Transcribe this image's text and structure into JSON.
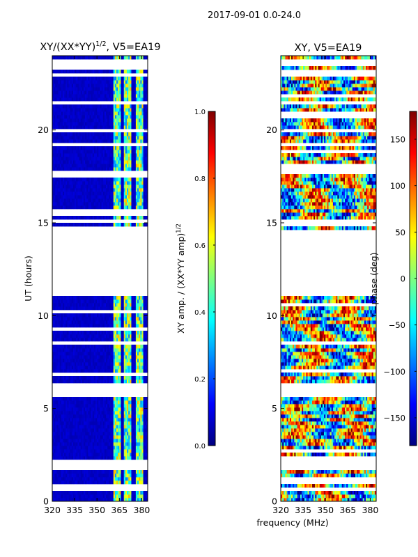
{
  "suptitle": "2017-09-01 0.0-24.0",
  "chart_data": [
    {
      "type": "heatmap",
      "title": "XY/(XX*YY)^1/2, V5=EA19",
      "title_main": "XY/(XX*YY)",
      "title_exp": "1/2",
      "title_rest": ", V5=EA19",
      "xlabel": "frequency (MHz)",
      "ylabel": "UT (hours)",
      "xlim": [
        320,
        384
      ],
      "ylim": [
        0,
        24
      ],
      "xticks": [
        320,
        335,
        350,
        365,
        380
      ],
      "yticks": [
        0,
        5,
        10,
        15,
        20
      ],
      "colorbar": {
        "label": "XY amp. / (XX*YY amp)^1/2",
        "label_main": "XY amp. / (XX*YY amp)",
        "label_exp": "1/2",
        "range": [
          0.0,
          1.0
        ],
        "ticks": [
          "0.0",
          "0.2",
          "0.4",
          "0.6",
          "0.8",
          "1.0"
        ],
        "tick_values": [
          0.0,
          0.2,
          0.4,
          0.6,
          0.8,
          1.0
        ],
        "colormap": "jet"
      },
      "flagged_blank_bands_hours": [
        [
          23.3,
          23.55
        ],
        [
          19.85,
          20.1
        ],
        [
          17.55,
          17.85
        ],
        [
          11.0,
          14.6
        ],
        [
          5.7,
          6.3
        ],
        [
          1.7,
          2.2
        ],
        [
          0.6,
          0.9
        ]
      ],
      "rfi_channel_bands_MHz": [
        [
          361,
          366
        ],
        [
          368,
          373
        ],
        [
          376,
          381
        ]
      ]
    },
    {
      "type": "heatmap",
      "title": "XY, V5=EA19",
      "xlabel": "frequency (MHz)",
      "ylabel": "",
      "xlim": [
        320,
        384
      ],
      "ylim": [
        0,
        24
      ],
      "xticks": [
        320,
        335,
        350,
        365,
        380
      ],
      "yticks": [
        0,
        5,
        10,
        15,
        20
      ],
      "colorbar": {
        "label": "phase (deg)",
        "range": [
          -180,
          180
        ],
        "ticks": [
          "−150",
          "−100",
          "−50",
          "0",
          "50",
          "100",
          "150"
        ],
        "tick_values": [
          -150,
          -100,
          -50,
          0,
          50,
          100,
          150
        ],
        "colormap": "jet"
      },
      "flagged_blank_bands_hours": [
        [
          22.8,
          23.05
        ],
        [
          19.85,
          20.1
        ],
        [
          17.55,
          17.85
        ],
        [
          11.0,
          14.6
        ],
        [
          5.7,
          6.3
        ],
        [
          1.7,
          2.2
        ]
      ]
    }
  ]
}
